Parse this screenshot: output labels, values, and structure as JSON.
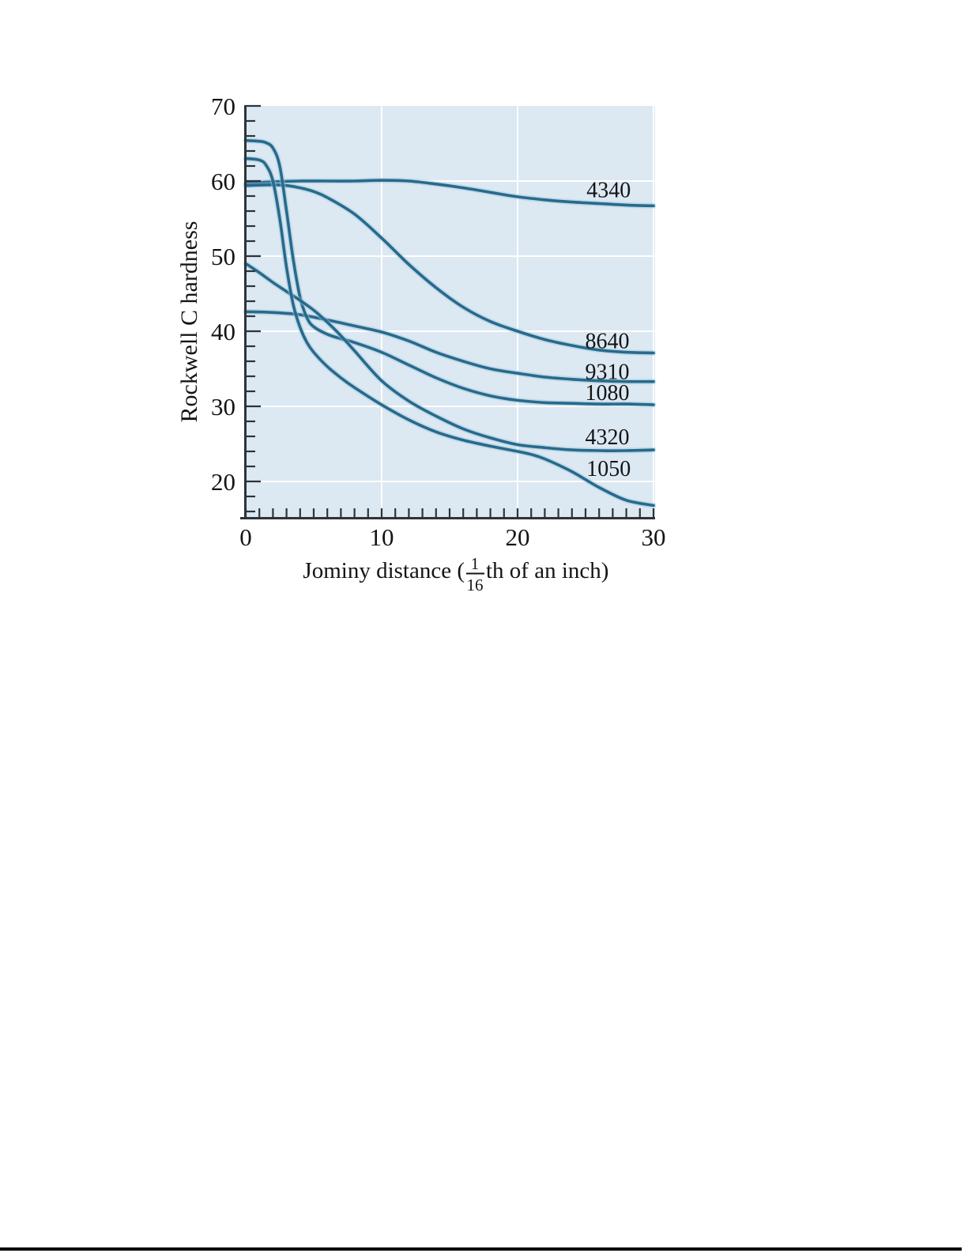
{
  "page": {
    "background": "#ffffff",
    "bottom_rule_color": "#000000"
  },
  "chart_data": {
    "type": "line",
    "title": "",
    "ylabel": "Rockwell C hardness",
    "xlabel_parts": {
      "prefix": "Jominy distance (",
      "fraction_numerator": "1",
      "fraction_denominator": "16",
      "suffix": "th of an inch)"
    },
    "xlim": [
      0,
      30
    ],
    "ylim": [
      15,
      70
    ],
    "x_major_ticks": [
      0,
      10,
      20,
      30
    ],
    "x_minor_tick_step": 1,
    "y_major_ticks": [
      20,
      30,
      40,
      50,
      60,
      70
    ],
    "y_minor_tick_step": 2,
    "grid": {
      "on": true,
      "color": "#ffffff",
      "x_lines": [
        10,
        20,
        30
      ],
      "y_lines": [
        20,
        30,
        40,
        50,
        60
      ]
    },
    "colors": {
      "plot_bg": "#dce8f2",
      "line": "#276a8c",
      "halo": "#9cc6da",
      "axis": "#2e3338",
      "text": "#141414"
    },
    "series": [
      {
        "name": "4340",
        "label": "4340",
        "label_pos": [
          26.7,
          58.8
        ],
        "points": [
          [
            0,
            59.7
          ],
          [
            2,
            59.9
          ],
          [
            4,
            60
          ],
          [
            6,
            60
          ],
          [
            8,
            60
          ],
          [
            10,
            60.1
          ],
          [
            12,
            60
          ],
          [
            14,
            59.6
          ],
          [
            16,
            59.1
          ],
          [
            18,
            58.5
          ],
          [
            20,
            57.9
          ],
          [
            22,
            57.5
          ],
          [
            24,
            57.2
          ],
          [
            26,
            57.0
          ],
          [
            28,
            56.8
          ],
          [
            30,
            56.7
          ]
        ]
      },
      {
        "name": "8640",
        "label": "8640",
        "label_pos": [
          26.6,
          38.7
        ],
        "points": [
          [
            0,
            59.4
          ],
          [
            2,
            59.5
          ],
          [
            3,
            59.4
          ],
          [
            4,
            59.1
          ],
          [
            5,
            58.6
          ],
          [
            6,
            57.8
          ],
          [
            8,
            55.6
          ],
          [
            10,
            52.4
          ],
          [
            12,
            48.9
          ],
          [
            14,
            45.8
          ],
          [
            16,
            43.2
          ],
          [
            18,
            41.3
          ],
          [
            20,
            40.0
          ],
          [
            22,
            38.9
          ],
          [
            24,
            38.1
          ],
          [
            26,
            37.5
          ],
          [
            28,
            37.2
          ],
          [
            30,
            37.1
          ]
        ]
      },
      {
        "name": "9310",
        "label": "9310",
        "label_pos": [
          26.6,
          34.6
        ],
        "points": [
          [
            0,
            42.6
          ],
          [
            2,
            42.5
          ],
          [
            4,
            42.2
          ],
          [
            6,
            41.5
          ],
          [
            8,
            40.7
          ],
          [
            10,
            39.9
          ],
          [
            12,
            38.7
          ],
          [
            14,
            37.2
          ],
          [
            16,
            36.0
          ],
          [
            18,
            35.0
          ],
          [
            20,
            34.4
          ],
          [
            22,
            33.9
          ],
          [
            24,
            33.6
          ],
          [
            26,
            33.4
          ],
          [
            28,
            33.3
          ],
          [
            30,
            33.3
          ]
        ]
      },
      {
        "name": "1080",
        "label": "1080",
        "label_pos": [
          26.6,
          31.8
        ],
        "points": [
          [
            0,
            65.4
          ],
          [
            1,
            65.3
          ],
          [
            1.5,
            65.1
          ],
          [
            2,
            64.4
          ],
          [
            2.5,
            62.0
          ],
          [
            3,
            56.0
          ],
          [
            3.5,
            49.5
          ],
          [
            4,
            44.5
          ],
          [
            4.5,
            41.8
          ],
          [
            5,
            40.6
          ],
          [
            6,
            39.6
          ],
          [
            7,
            39.0
          ],
          [
            8,
            38.5
          ],
          [
            10,
            37.2
          ],
          [
            12,
            35.5
          ],
          [
            14,
            33.8
          ],
          [
            16,
            32.4
          ],
          [
            18,
            31.4
          ],
          [
            20,
            30.8
          ],
          [
            22,
            30.5
          ],
          [
            24,
            30.4
          ],
          [
            26,
            30.3
          ],
          [
            28,
            30.3
          ],
          [
            30,
            30.2
          ]
        ]
      },
      {
        "name": "4320",
        "label": "4320",
        "label_pos": [
          26.6,
          25.9
        ],
        "points": [
          [
            0,
            49.0
          ],
          [
            1,
            47.8
          ],
          [
            2,
            46.5
          ],
          [
            3,
            45.3
          ],
          [
            4,
            44.1
          ],
          [
            5,
            42.8
          ],
          [
            6,
            41.2
          ],
          [
            7,
            39.4
          ],
          [
            8,
            37.4
          ],
          [
            10,
            33.4
          ],
          [
            12,
            30.7
          ],
          [
            14,
            28.7
          ],
          [
            16,
            27.0
          ],
          [
            18,
            25.8
          ],
          [
            20,
            24.9
          ],
          [
            22,
            24.5
          ],
          [
            24,
            24.2
          ],
          [
            26,
            24.1
          ],
          [
            28,
            24.1
          ],
          [
            30,
            24.2
          ]
        ]
      },
      {
        "name": "1050",
        "label": "1050",
        "label_pos": [
          26.7,
          21.7
        ],
        "points": [
          [
            0,
            63.0
          ],
          [
            1,
            62.8
          ],
          [
            1.5,
            62.1
          ],
          [
            2,
            60.0
          ],
          [
            2.5,
            55.0
          ],
          [
            3,
            48.5
          ],
          [
            3.5,
            43.5
          ],
          [
            4,
            40.5
          ],
          [
            4.5,
            38.5
          ],
          [
            5,
            37.2
          ],
          [
            6,
            35.3
          ],
          [
            7,
            33.8
          ],
          [
            8,
            32.5
          ],
          [
            10,
            30.2
          ],
          [
            12,
            28.2
          ],
          [
            14,
            26.6
          ],
          [
            16,
            25.5
          ],
          [
            18,
            24.7
          ],
          [
            20,
            24.0
          ],
          [
            21,
            23.6
          ],
          [
            22,
            23.0
          ],
          [
            24,
            21.3
          ],
          [
            26,
            19.2
          ],
          [
            28,
            17.5
          ],
          [
            30,
            16.8
          ]
        ]
      }
    ]
  }
}
